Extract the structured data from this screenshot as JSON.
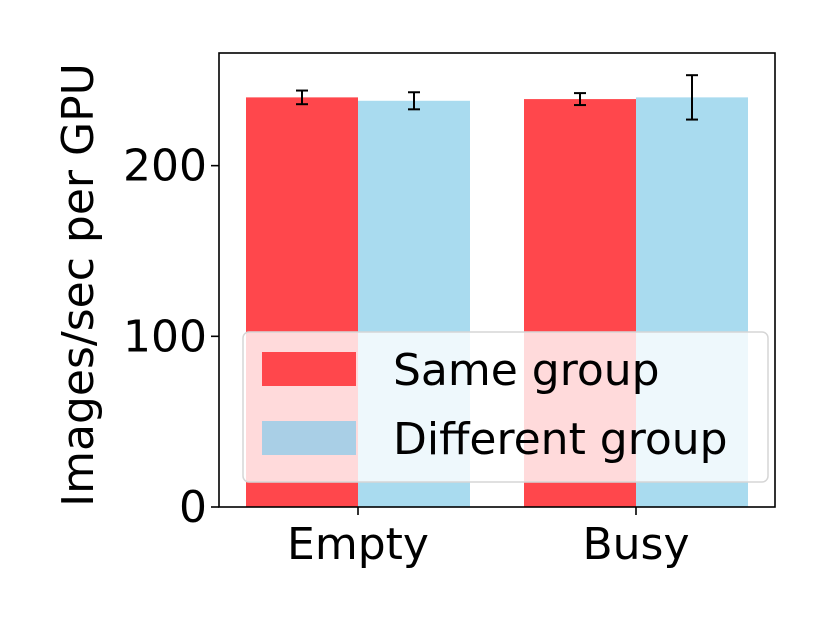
{
  "chart_data": {
    "type": "bar",
    "title": "",
    "xlabel": "",
    "ylabel": "Images/sec per GPU",
    "categories": [
      "Empty",
      "Busy"
    ],
    "ylim": [
      0,
      266
    ],
    "yticks": [
      0,
      100,
      200
    ],
    "grid": false,
    "legend_position": "lower-left",
    "series": [
      {
        "name": "Same group",
        "color": "#ff474c",
        "values": [
          240,
          239
        ],
        "errors": [
          4,
          3.5
        ]
      },
      {
        "name": "Different group",
        "color": "#a9dbef",
        "legend_color": "#a9cfe6",
        "values": [
          238,
          240
        ],
        "errors": [
          5,
          13
        ]
      }
    ]
  }
}
